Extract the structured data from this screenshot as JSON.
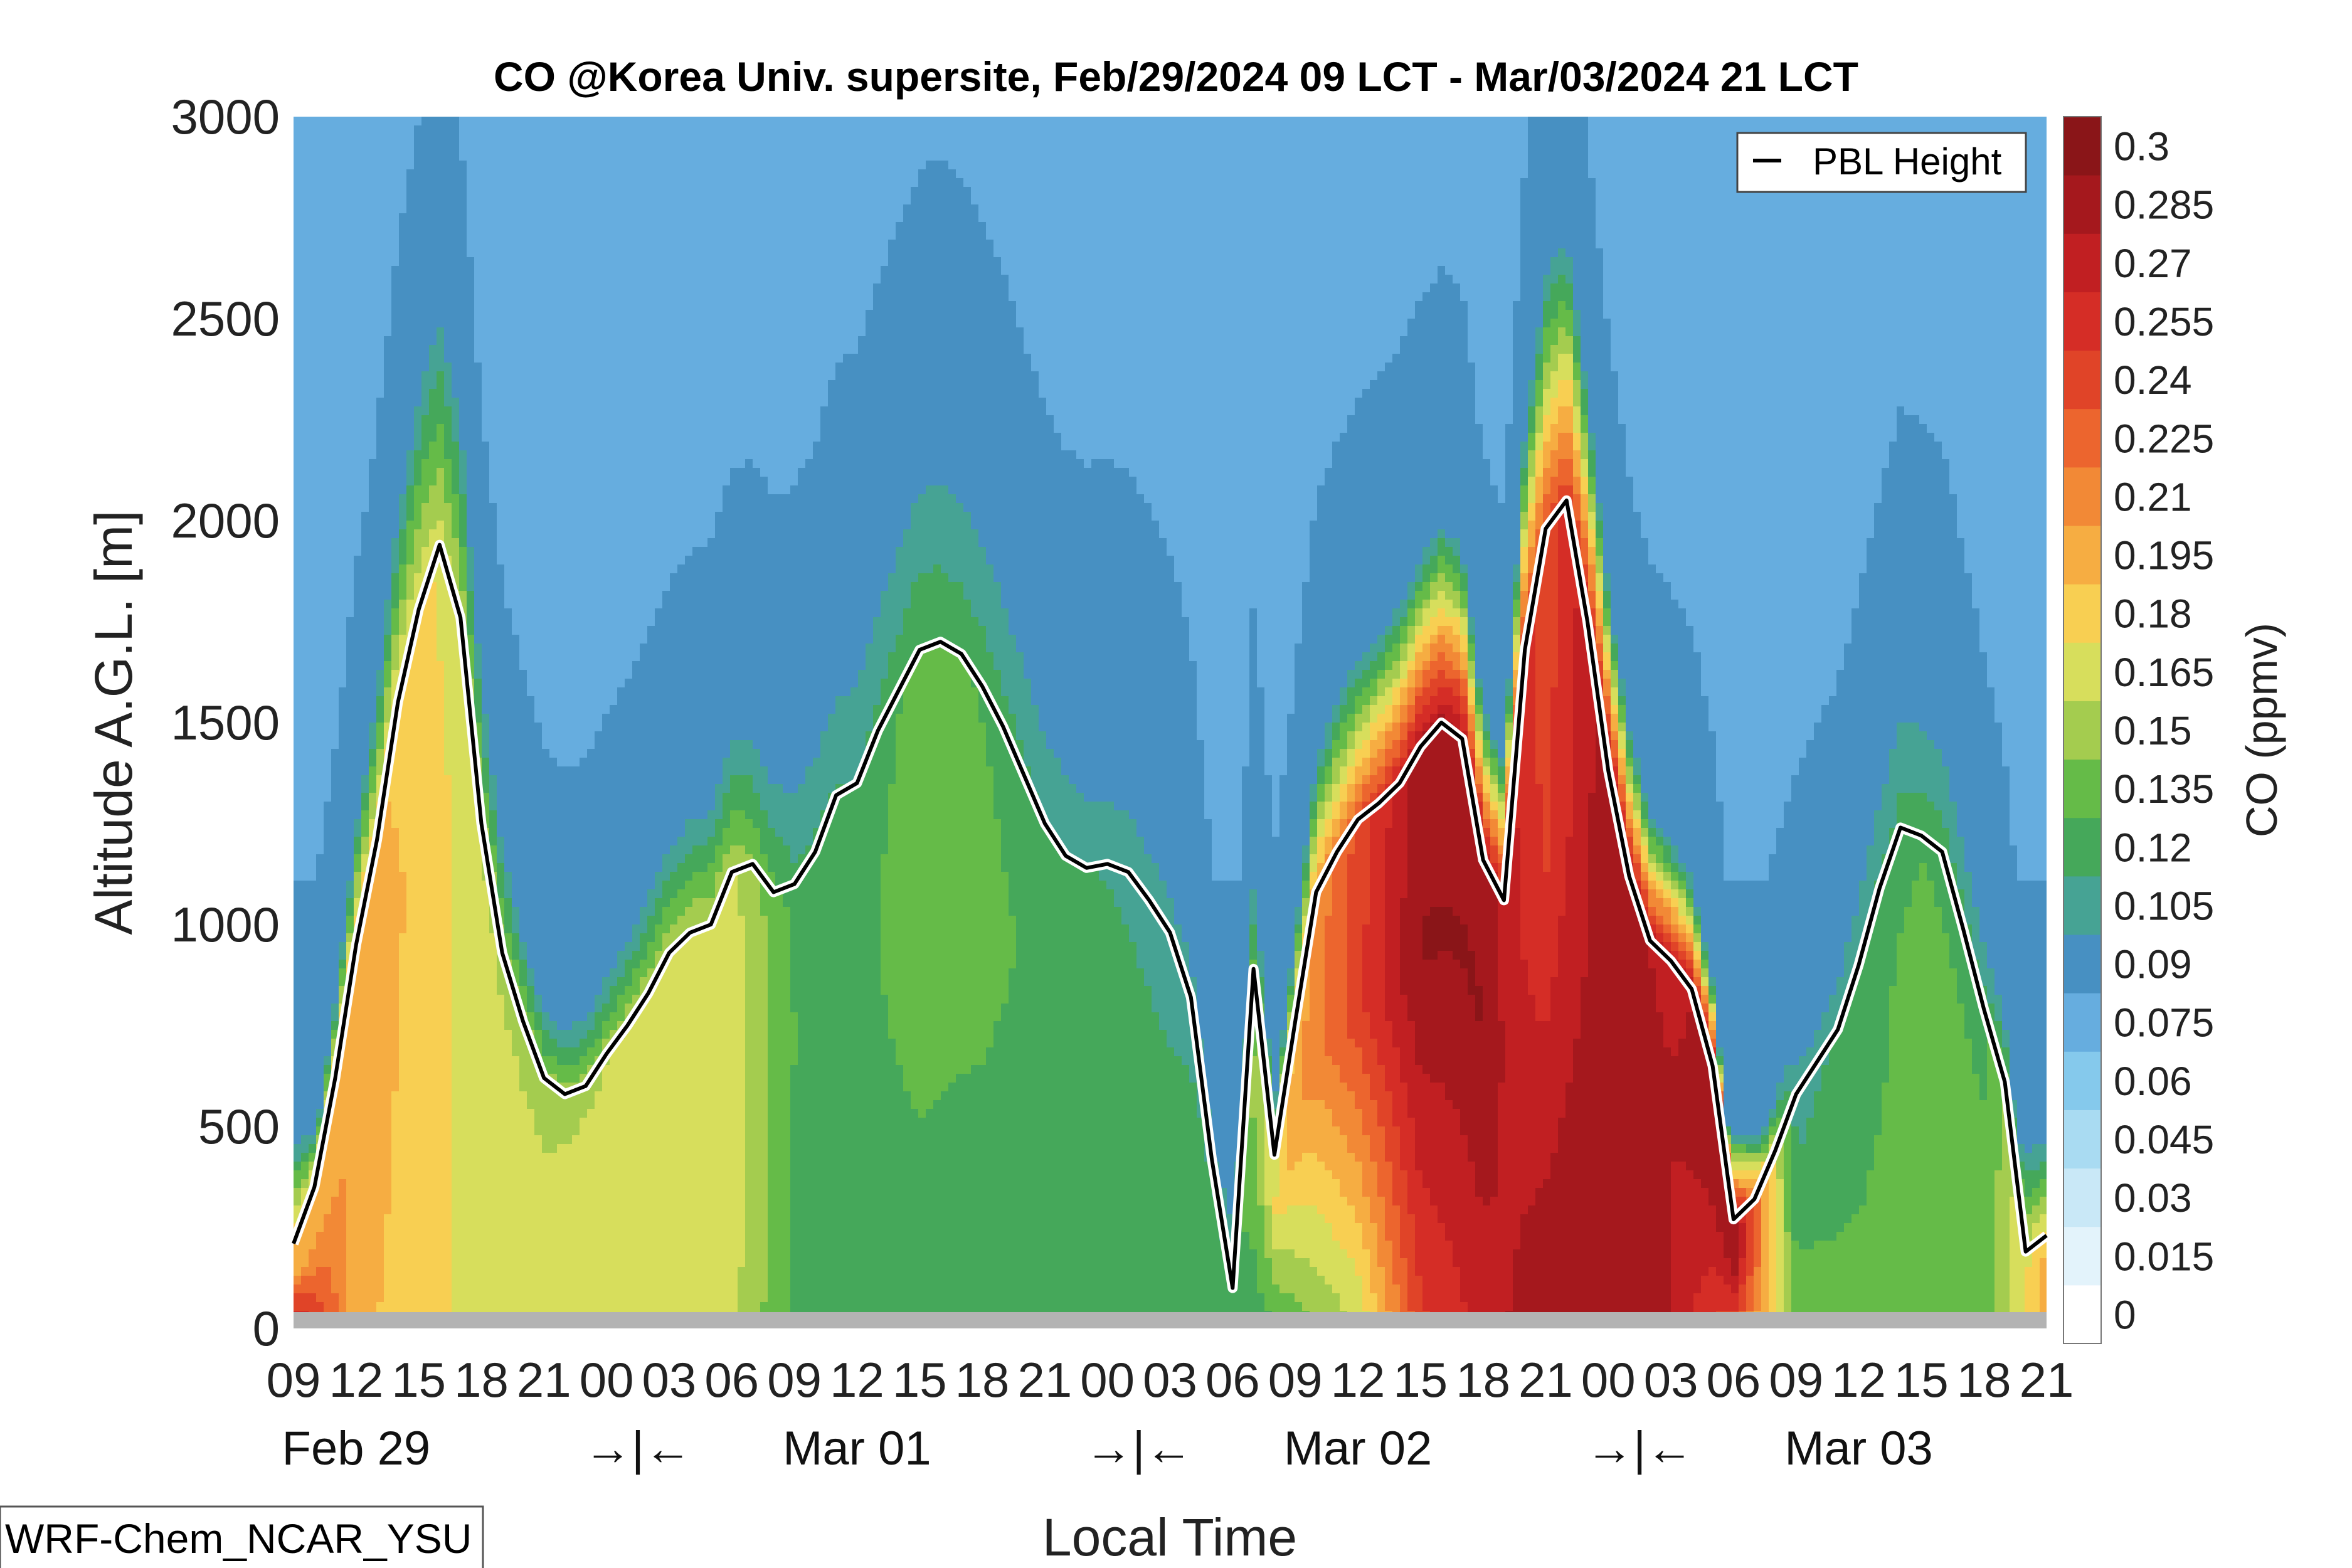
{
  "chart_data": {
    "type": "heatmap",
    "title": "CO @Korea Univ. supersite, Feb/29/2024 09 LCT - Mar/03/2024 21 LCT",
    "xlabel": "Local Time",
    "ylabel": "Altitude A.G.L. [m]",
    "colorbar_label": "CO (ppmv)",
    "ylim": [
      0,
      3000
    ],
    "y_ticks": [
      0,
      500,
      1000,
      1500,
      2000,
      2500,
      3000
    ],
    "x_tick_labels": [
      "09",
      "12",
      "15",
      "18",
      "21",
      "00",
      "03",
      "06",
      "09",
      "12",
      "15",
      "18",
      "21",
      "00",
      "03",
      "06",
      "09",
      "12",
      "15",
      "18",
      "21",
      "00",
      "03",
      "06",
      "09",
      "12",
      "15",
      "18",
      "21"
    ],
    "date_labels": [
      {
        "text": "Feb 29",
        "at_hour": 3
      },
      {
        "text": "→|←",
        "at_hour": 16.5
      },
      {
        "text": "Mar 01",
        "at_hour": 27
      },
      {
        "text": "→|←",
        "at_hour": 40.5
      },
      {
        "text": "Mar 02",
        "at_hour": 51
      },
      {
        "text": "→|←",
        "at_hour": 64.5
      },
      {
        "text": "Mar 03",
        "at_hour": 75
      }
    ],
    "colorbar_levels": [
      0,
      0.015,
      0.03,
      0.045,
      0.06,
      0.075,
      0.09,
      0.105,
      0.12,
      0.135,
      0.15,
      0.165,
      0.18,
      0.195,
      0.21,
      0.225,
      0.24,
      0.255,
      0.27,
      0.285,
      0.3
    ],
    "colorbar_colors": [
      "#ffffff",
      "#e3f3fb",
      "#c9e8f7",
      "#a9dbf2",
      "#85c9ec",
      "#66addf",
      "#4790c2",
      "#46a394",
      "#45a85a",
      "#65bb48",
      "#a4cc4f",
      "#d7de5c",
      "#f8cf52",
      "#f6ad42",
      "#f28936",
      "#ec652e",
      "#e04428",
      "#d52d26",
      "#c11f22",
      "#a5181d",
      "#8a1518"
    ],
    "legend": {
      "label": "PBL Height",
      "position": "top-right"
    },
    "pbl_height": {
      "hours": [
        0,
        1,
        2,
        3,
        4,
        5,
        6,
        7,
        8,
        9,
        10,
        11,
        12,
        13,
        14,
        15,
        16,
        17,
        18,
        19,
        20,
        21,
        22,
        23,
        24,
        25,
        26,
        27,
        28,
        29,
        30,
        31,
        32,
        33,
        34,
        35,
        36,
        37,
        38,
        39,
        40,
        41,
        42,
        43,
        44,
        45,
        46,
        47,
        48,
        49,
        50,
        51,
        52,
        53,
        54,
        55,
        56,
        57,
        58,
        59,
        60,
        61,
        62,
        63,
        64,
        65,
        66,
        67,
        68,
        69,
        70,
        71,
        72,
        73,
        74,
        75,
        76,
        77,
        78,
        79,
        80,
        81,
        82,
        83,
        84
      ],
      "values": [
        210,
        350,
        620,
        950,
        1210,
        1550,
        1780,
        1940,
        1760,
        1250,
        930,
        760,
        620,
        580,
        600,
        680,
        750,
        830,
        930,
        980,
        1000,
        1130,
        1150,
        1080,
        1100,
        1180,
        1320,
        1350,
        1480,
        1580,
        1680,
        1700,
        1670,
        1590,
        1490,
        1370,
        1250,
        1170,
        1140,
        1150,
        1130,
        1060,
        980,
        820,
        420,
        100,
        890,
        430,
        760,
        1080,
        1180,
        1260,
        1300,
        1350,
        1440,
        1500,
        1460,
        1160,
        1060,
        1680,
        1980,
        2050,
        1750,
        1380,
        1120,
        960,
        910,
        840,
        650,
        270,
        320,
        440,
        580,
        660,
        740,
        900,
        1090,
        1240,
        1220,
        1180,
        990,
        790,
        610,
        190,
        230
      ]
    },
    "co_profile": {
      "hours": [
        0,
        3,
        6,
        9,
        12,
        15,
        18,
        21,
        24,
        27,
        30,
        33,
        36,
        39,
        42,
        45,
        48,
        51,
        54,
        57,
        60,
        63,
        66,
        69,
        72,
        75,
        78,
        81,
        84
      ],
      "surface_ppmv": [
        0.29,
        0.2,
        0.185,
        0.175,
        0.165,
        0.17,
        0.175,
        0.17,
        0.13,
        0.125,
        0.125,
        0.125,
        0.125,
        0.125,
        0.125,
        0.12,
        0.14,
        0.165,
        0.25,
        0.275,
        0.3,
        0.3,
        0.285,
        0.24,
        0.15,
        0.14,
        0.14,
        0.14,
        0.2
      ],
      "core_ppmv": [
        0.2,
        0.21,
        0.19,
        0.17,
        0.165,
        0.17,
        0.175,
        0.175,
        0.135,
        0.13,
        0.145,
        0.14,
        0.13,
        0.125,
        0.12,
        0.125,
        0.205,
        0.25,
        0.3,
        0.3,
        0.25,
        0.3,
        0.285,
        0.3,
        0.12,
        0.13,
        0.14,
        0.135,
        0.2
      ]
    },
    "grid": false,
    "model_label": "WRF-Chem_NCAR_YSU"
  }
}
